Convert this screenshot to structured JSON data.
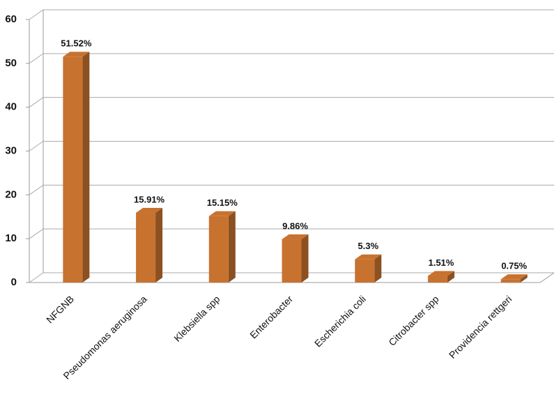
{
  "chart_data": {
    "type": "bar",
    "categories": [
      "NFGNB",
      "Pseudomonas aeruginosa",
      "Klebsiella spp",
      "Enterobacter",
      "Escherichia coli",
      "Citrobacter spp",
      "Providencia rettgeri"
    ],
    "values": [
      51.52,
      15.91,
      15.15,
      9.86,
      5.3,
      1.51,
      0.75
    ],
    "value_labels": [
      "51.52%",
      "15.91%",
      "15.15%",
      "9.86%",
      "5.3%",
      "1.51%",
      "0.75%"
    ],
    "color": "#c8722f",
    "ylim": [
      0,
      60
    ],
    "yticks": [
      0,
      10,
      20,
      30,
      40,
      50,
      60
    ],
    "grid": true
  }
}
